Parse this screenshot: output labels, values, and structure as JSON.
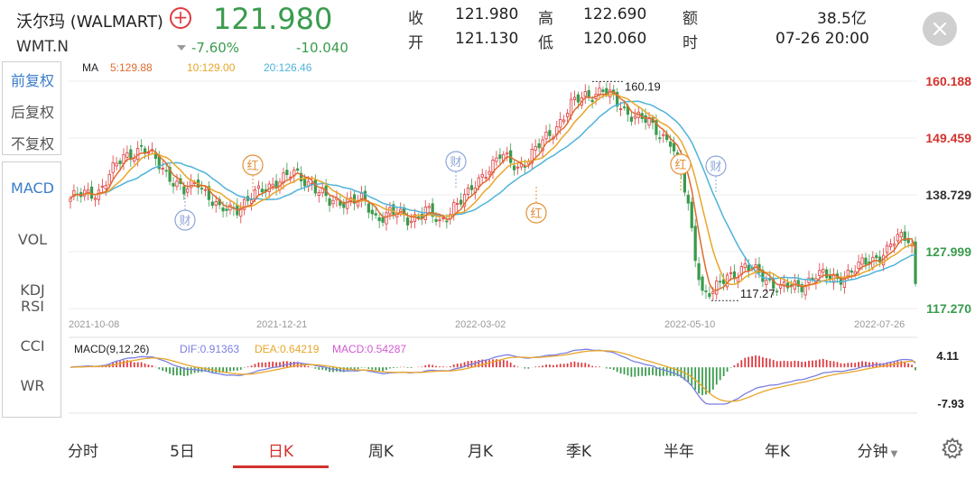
{
  "header": {
    "name": "沃尔玛 (WALMART)",
    "add_symbol": "+",
    "price": "121.980",
    "ticker": "WMT.N",
    "change_pct": "-7.60%",
    "change_abs": "-10.040",
    "stats": {
      "close_label": "收",
      "close_value": "121.980",
      "high_label": "高",
      "high_value": "122.690",
      "amount_label": "额",
      "amount_value": "38.5亿",
      "open_label": "开",
      "open_value": "121.130",
      "low_label": "低",
      "low_value": "120.060",
      "time_label": "时",
      "time_value": "07-26 20:00"
    }
  },
  "adjust_options": [
    "前复权",
    "后复权",
    "不复权"
  ],
  "indicator_options": [
    "MACD",
    "VOL",
    "KDJ",
    "RSI",
    "CCI",
    "WR"
  ],
  "tabs": [
    "分时",
    "5日",
    "日K",
    "周K",
    "月K",
    "季K",
    "半年",
    "年K",
    "分钟"
  ],
  "active_tab": "日K",
  "colors": {
    "up": "#e0393e",
    "down": "#3a9b4d",
    "ma5": "#e06b2e",
    "ma10": "#e9a62a",
    "ma20": "#4fb3d9",
    "dif": "#7b7fe0",
    "dea": "#e9a62a",
    "macd": "#d35ad3",
    "active": "#3a7cc9"
  },
  "chart_data": [
    {
      "type": "candlestick",
      "legend": {
        "title": "MA",
        "ma5": "5:129.88",
        "ma10": "10:129.00",
        "ma20": "20:126.46"
      },
      "y_ticks": [
        "160.188",
        "149.459",
        "138.729",
        "127.999",
        "117.270"
      ],
      "ylim": [
        117.27,
        160.188
      ],
      "x_ticks": [
        "2021-10-08",
        "2021-12-21",
        "2022-03-02",
        "2022-05-10",
        "2022-07-26"
      ],
      "annotations": {
        "max_label": "160.19",
        "min_label": "117.27",
        "event_labels": [
          "财",
          "红",
          "财",
          "红",
          "红",
          "财"
        ]
      },
      "close_anchors": [
        [
          0,
          138.0
        ],
        [
          8,
          139.5
        ],
        [
          15,
          146.0
        ],
        [
          20,
          147.5
        ],
        [
          26,
          144.0
        ],
        [
          32,
          139.0
        ],
        [
          36,
          141.5
        ],
        [
          42,
          135.5
        ],
        [
          47,
          136.5
        ],
        [
          53,
          139.0
        ],
        [
          58,
          141.5
        ],
        [
          63,
          142.5
        ],
        [
          68,
          141.0
        ],
        [
          73,
          137.0
        ],
        [
          78,
          138.0
        ],
        [
          82,
          137.5
        ],
        [
          86,
          134.5
        ],
        [
          90,
          135.5
        ],
        [
          95,
          134.0
        ],
        [
          100,
          136.0
        ],
        [
          104,
          133.0
        ],
        [
          108,
          137.0
        ],
        [
          112,
          138.5
        ],
        [
          117,
          143.5
        ],
        [
          121,
          146.0
        ],
        [
          126,
          144.0
        ],
        [
          131,
          147.0
        ],
        [
          136,
          151.0
        ],
        [
          141,
          155.5
        ],
        [
          145,
          157.5
        ],
        [
          150,
          158.5
        ],
        [
          153,
          156.5
        ],
        [
          157,
          154.5
        ],
        [
          162,
          152.5
        ],
        [
          166,
          150.5
        ],
        [
          169,
          149.0
        ],
        [
          172,
          142.5
        ],
        [
          174,
          136.5
        ],
        [
          176,
          127.5
        ],
        [
          178,
          120.5
        ],
        [
          181,
          120.0
        ],
        [
          185,
          123.5
        ],
        [
          190,
          125.0
        ],
        [
          195,
          123.5
        ],
        [
          200,
          121.0
        ],
        [
          205,
          121.5
        ],
        [
          210,
          123.5
        ],
        [
          215,
          123.0
        ],
        [
          220,
          124.0
        ],
        [
          225,
          126.5
        ],
        [
          230,
          128.0
        ],
        [
          233,
          130.5
        ],
        [
          236,
          131.0
        ],
        [
          237,
          129.5
        ]
      ],
      "last_close": 121.98
    },
    {
      "type": "macd",
      "legend": {
        "title": "MACD(9,12,26)",
        "dif": "DIF:0.91363",
        "dea": "DEA:0.64219",
        "macd": "MACD:0.54287"
      },
      "y_ticks": [
        "4.11",
        "-7.93"
      ],
      "ylim": [
        -7.93,
        4.11
      ]
    }
  ]
}
